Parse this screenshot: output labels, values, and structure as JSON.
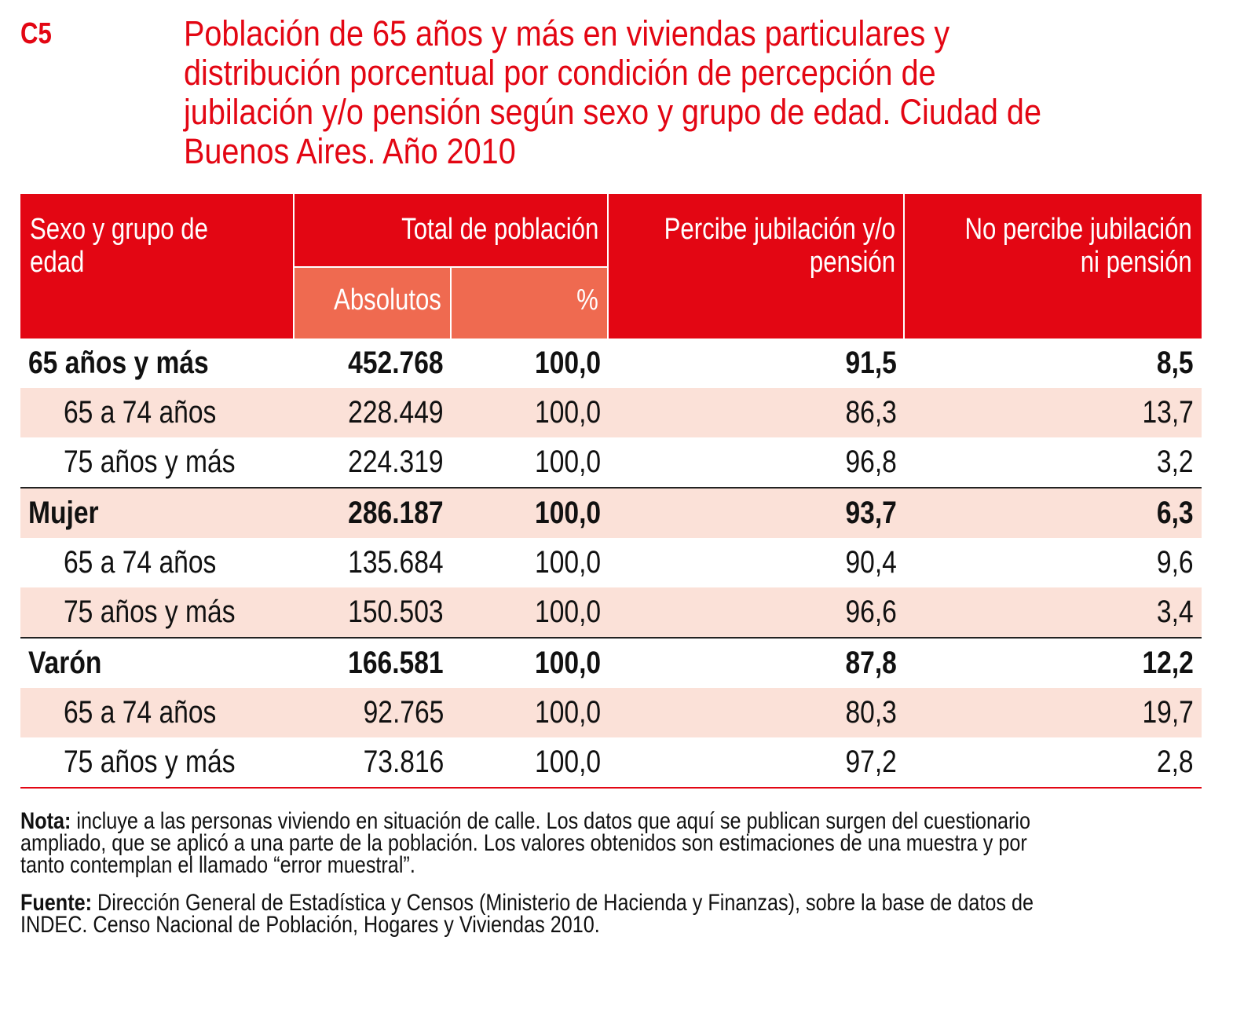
{
  "code": "C5",
  "title_lines": [
    "Población de 65 años y más en viviendas particulares y",
    "distribución porcentual por condición de percepción de",
    "jubilación y/o pensión según sexo y grupo de edad. Ciudad de",
    "Buenos Aires. Año 2010"
  ],
  "colors": {
    "accent": "#e30613",
    "subheader": "#ef6a50",
    "row_shade": "#fbe1d8"
  },
  "header": {
    "sexo": [
      "Sexo y grupo de",
      "edad"
    ],
    "total": "Total de población",
    "absolutos": "Absolutos",
    "pct": "%",
    "percibe": [
      "Percibe jubilación y/o",
      "pensión"
    ],
    "no_percibe": [
      "No percibe jubilación",
      "ni pensión"
    ]
  },
  "rows": [
    {
      "label": "65 años y más",
      "abs": "452.768",
      "pct": "100,0",
      "percibe": "91,5",
      "no_percibe": "8,5"
    },
    {
      "label": "65 a 74 años",
      "abs": "228.449",
      "pct": "100,0",
      "percibe": "86,3",
      "no_percibe": "13,7"
    },
    {
      "label": "75 años y más",
      "abs": "224.319",
      "pct": "100,0",
      "percibe": "96,8",
      "no_percibe": "3,2"
    },
    {
      "label": "Mujer",
      "abs": "286.187",
      "pct": "100,0",
      "percibe": "93,7",
      "no_percibe": "6,3"
    },
    {
      "label": "65 a 74 años",
      "abs": "135.684",
      "pct": "100,0",
      "percibe": "90,4",
      "no_percibe": "9,6"
    },
    {
      "label": "75 años y más",
      "abs": "150.503",
      "pct": "100,0",
      "percibe": "96,6",
      "no_percibe": "3,4"
    },
    {
      "label": "Varón",
      "abs": "166.581",
      "pct": "100,0",
      "percibe": "87,8",
      "no_percibe": "12,2"
    },
    {
      "label": "65 a 74 años",
      "abs": "92.765",
      "pct": "100,0",
      "percibe": "80,3",
      "no_percibe": "19,7"
    },
    {
      "label": "75 años y más",
      "abs": "73.816",
      "pct": "100,0",
      "percibe": "97,2",
      "no_percibe": "2,8"
    }
  ],
  "nota": {
    "label": "Nota:",
    "lines": [
      " incluye a las personas viviendo en situación de calle. Los datos que aquí se publican surgen del cuestionario",
      "ampliado, que se aplicó a una parte de la población. Los valores obtenidos son estimaciones de una muestra y por",
      "tanto contemplan el llamado “error muestral”."
    ]
  },
  "fuente": {
    "label": "Fuente:",
    "lines": [
      " Dirección General de Estadística y Censos (Ministerio de Hacienda y Finanzas), sobre la base de datos de",
      "INDEC. Censo Nacional de Población, Hogares y Viviendas 2010."
    ]
  }
}
